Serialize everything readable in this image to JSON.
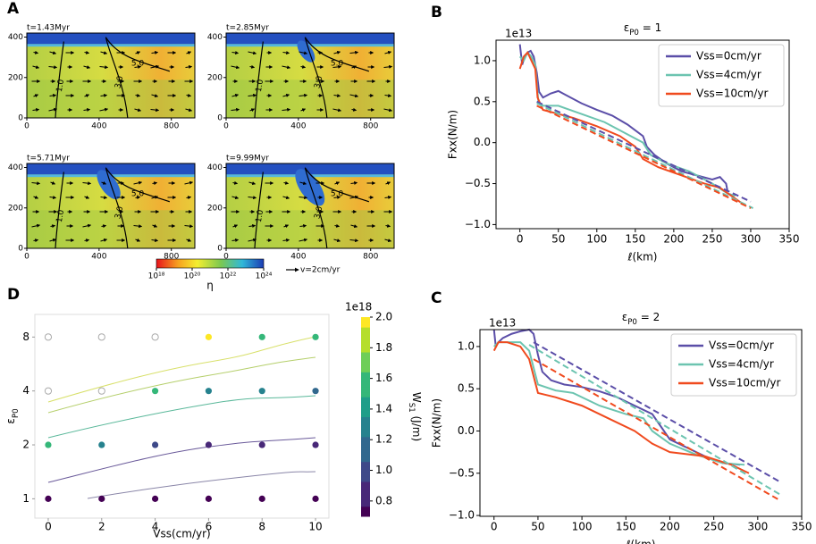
{
  "chart_data": [
    {
      "type": "field",
      "panel": "A",
      "subplots": [
        {
          "title": "t=1.43Myr",
          "contour_labels": [
            "1.0",
            "3.0",
            "5.0"
          ]
        },
        {
          "title": "t=2.85Myr",
          "contour_labels": [
            "1.0",
            "3.0",
            "5.0"
          ]
        },
        {
          "title": "t=5.71Myr",
          "contour_labels": [
            "1.0",
            "3.0",
            "5.0"
          ]
        },
        {
          "title": "t=9.99Myr",
          "contour_labels": [
            "1.0",
            "3.0",
            "5.0"
          ]
        }
      ],
      "xlim": [
        0,
        930
      ],
      "ylim": [
        0,
        420
      ],
      "xticks": [
        0,
        400,
        800
      ],
      "yticks": [
        0,
        200,
        400
      ],
      "colorbar": {
        "label": "η",
        "log": true,
        "lim": [
          1e+18,
          1e+24
        ],
        "ticks": [
          {
            "value": 1e+18,
            "label": "10¹⁸"
          },
          {
            "value": 1e+20,
            "label": "10²⁰"
          },
          {
            "value": 1e+22,
            "label": "10²²"
          },
          {
            "value": 1e+24,
            "label": "10²⁴"
          }
        ]
      },
      "scale_label": "v=2cm/yr"
    },
    {
      "type": "line",
      "panel": "B",
      "title": [
        "ε",
        "P0",
        " = 1"
      ],
      "offset": "1e13",
      "xlabel": "ℓ(km)",
      "ylabel": "Fxx(N/m)",
      "legend": "upper right",
      "xlim": [
        -31,
        350
      ],
      "ylim": [
        -1.05,
        1.25
      ],
      "xticks": [
        0,
        50,
        100,
        150,
        200,
        250,
        300,
        350
      ],
      "yticks": [
        {
          "value": -1,
          "label": "−1.0"
        },
        {
          "value": -0.5,
          "label": "−0.5"
        },
        {
          "value": 0,
          "label": "0.0"
        },
        {
          "value": 0.5,
          "label": "0.5"
        },
        {
          "value": 1,
          "label": "1.0"
        }
      ],
      "series": [
        {
          "name": "Vss=0cm/yr",
          "color": "#5b4ea8",
          "style": "solid",
          "x": [
            0,
            3,
            6,
            10,
            14,
            18,
            22,
            25,
            30,
            40,
            50,
            60,
            80,
            100,
            120,
            140,
            150,
            160,
            165,
            175,
            190,
            210,
            230,
            250,
            260,
            268,
            270
          ],
          "values": [
            1.2,
            0.95,
            1.05,
            1.1,
            1.12,
            1.05,
            0.85,
            0.62,
            0.55,
            0.6,
            0.63,
            0.58,
            0.48,
            0.4,
            0.33,
            0.22,
            0.15,
            0.08,
            -0.05,
            -0.15,
            -0.25,
            -0.35,
            -0.4,
            -0.45,
            -0.42,
            -0.5,
            -0.6
          ]
        },
        {
          "name": "Vss=4cm/yr",
          "color": "#6cc4b0",
          "style": "solid",
          "x": [
            0,
            5,
            10,
            15,
            20,
            24,
            30,
            50,
            80,
            110,
            140,
            160,
            170,
            190,
            220,
            250,
            270,
            280
          ],
          "values": [
            1.05,
            1.0,
            1.1,
            1.05,
            0.95,
            0.5,
            0.45,
            0.45,
            0.35,
            0.25,
            0.1,
            0.0,
            -0.15,
            -0.25,
            -0.35,
            -0.5,
            -0.62,
            -0.65
          ]
        },
        {
          "name": "Vss=10cm/yr",
          "color": "#f04a1e",
          "style": "solid",
          "x": [
            0,
            5,
            10,
            15,
            20,
            23,
            30,
            50,
            70,
            100,
            130,
            150,
            160,
            180,
            210,
            240,
            260,
            275,
            290
          ],
          "values": [
            0.9,
            1.05,
            1.1,
            1.0,
            0.9,
            0.55,
            0.4,
            0.35,
            0.3,
            0.2,
            0.08,
            -0.05,
            -0.2,
            -0.3,
            -0.4,
            -0.5,
            -0.55,
            -0.65,
            -0.75
          ]
        },
        {
          "color": "#5b4ea8",
          "style": "dashed",
          "x": [
            22,
            300
          ],
          "values": [
            0.5,
            -0.72
          ]
        },
        {
          "color": "#6cc4b0",
          "style": "dashed",
          "x": [
            22,
            303
          ],
          "values": [
            0.48,
            -0.8
          ]
        },
        {
          "color": "#f04a1e",
          "style": "dashed",
          "x": [
            22,
            300
          ],
          "values": [
            0.45,
            -0.8
          ]
        }
      ]
    },
    {
      "type": "line",
      "panel": "C",
      "title": [
        "ε",
        "P0",
        " = 2"
      ],
      "offset": "1e13",
      "xlabel": "ℓ(km)",
      "ylabel": "Fxx(N/m)",
      "legend": "upper right",
      "xlim": [
        -16,
        350
      ],
      "ylim": [
        -1.01,
        1.2
      ],
      "xticks": [
        0,
        50,
        100,
        150,
        200,
        250,
        300,
        350
      ],
      "yticks": [
        {
          "value": -1,
          "label": "−1.0"
        },
        {
          "value": -0.5,
          "label": "−0.5"
        },
        {
          "value": 0,
          "label": "0.0"
        },
        {
          "value": 0.5,
          "label": "0.5"
        },
        {
          "value": 1,
          "label": "1.0"
        }
      ],
      "series": [
        {
          "name": "Vss=0cm/yr",
          "color": "#5b4ea8",
          "style": "solid",
          "x": [
            0,
            2,
            5,
            10,
            20,
            30,
            40,
            45,
            50,
            55,
            65,
            80,
            100,
            120,
            140,
            160,
            180,
            190,
            200,
            220,
            240,
            260,
            280
          ],
          "values": [
            1.2,
            1.0,
            1.05,
            1.1,
            1.15,
            1.18,
            1.2,
            1.15,
            0.9,
            0.7,
            0.6,
            0.55,
            0.52,
            0.47,
            0.4,
            0.3,
            0.2,
            0.05,
            -0.1,
            -0.2,
            -0.3,
            -0.38,
            -0.4
          ]
        },
        {
          "name": "Vss=4cm/yr",
          "color": "#6cc4b0",
          "style": "solid",
          "x": [
            0,
            5,
            15,
            30,
            40,
            50,
            70,
            90,
            120,
            150,
            170,
            180,
            200,
            230,
            260,
            285
          ],
          "values": [
            1.0,
            1.05,
            1.05,
            1.05,
            0.95,
            0.55,
            0.48,
            0.45,
            0.3,
            0.2,
            0.15,
            0.0,
            -0.15,
            -0.28,
            -0.38,
            -0.4
          ]
        },
        {
          "name": "Vss=10cm/yr",
          "color": "#f04a1e",
          "style": "solid",
          "x": [
            0,
            5,
            15,
            30,
            40,
            50,
            70,
            100,
            130,
            160,
            180,
            200,
            240,
            270,
            290
          ],
          "values": [
            0.95,
            1.05,
            1.05,
            1.0,
            0.85,
            0.45,
            0.4,
            0.3,
            0.15,
            0.0,
            -0.15,
            -0.25,
            -0.3,
            -0.4,
            -0.5
          ]
        },
        {
          "color": "#5b4ea8",
          "style": "dashed",
          "x": [
            45,
            325
          ],
          "values": [
            1.05,
            -0.6
          ]
        },
        {
          "color": "#6cc4b0",
          "style": "dashed",
          "x": [
            40,
            325
          ],
          "values": [
            1.02,
            -0.75
          ]
        },
        {
          "color": "#f04a1e",
          "style": "dashed",
          "x": [
            45,
            325
          ],
          "values": [
            0.85,
            -0.82
          ]
        }
      ]
    },
    {
      "type": "scatter",
      "panel": "D",
      "xlabel": "Vss(cm/yr)",
      "ylabel": [
        "ε",
        "P0"
      ],
      "xlim": [
        -0.5,
        10.5
      ],
      "ylim": [
        0.78,
        10.7
      ],
      "ylog": true,
      "xticks": [
        0,
        2,
        4,
        6,
        8,
        10
      ],
      "yticks": [
        1,
        2,
        4,
        8
      ],
      "x": [
        0,
        2,
        4,
        6,
        8,
        10,
        0,
        2,
        4,
        6,
        8,
        10,
        0,
        2,
        4,
        6,
        8,
        10,
        0,
        2,
        4,
        6,
        8,
        10
      ],
      "y": [
        8,
        8,
        8,
        8,
        8,
        8,
        4,
        4,
        4,
        4,
        4,
        4,
        2,
        2,
        2,
        2,
        2,
        2,
        1,
        1,
        1,
        1,
        1,
        1
      ],
      "values": [
        null,
        null,
        null,
        1.95,
        1.55,
        1.5,
        null,
        null,
        1.55,
        1.25,
        1.3,
        1.1,
        1.5,
        1.3,
        0.95,
        0.85,
        0.85,
        0.8,
        0.75,
        0.75,
        0.75,
        0.75,
        0.75,
        0.75
      ],
      "colorbar": {
        "label": [
          "W",
          "S1",
          " (J/m)"
        ],
        "offset": "1e18",
        "colormap": "viridis",
        "lim": [
          0.7,
          2.0
        ],
        "ticks": [
          0.8,
          {
            "value": 1,
            "label": "1.0"
          },
          1.2,
          1.4,
          1.6,
          1.8,
          {
            "value": 2,
            "label": "2.0"
          }
        ]
      }
    }
  ]
}
